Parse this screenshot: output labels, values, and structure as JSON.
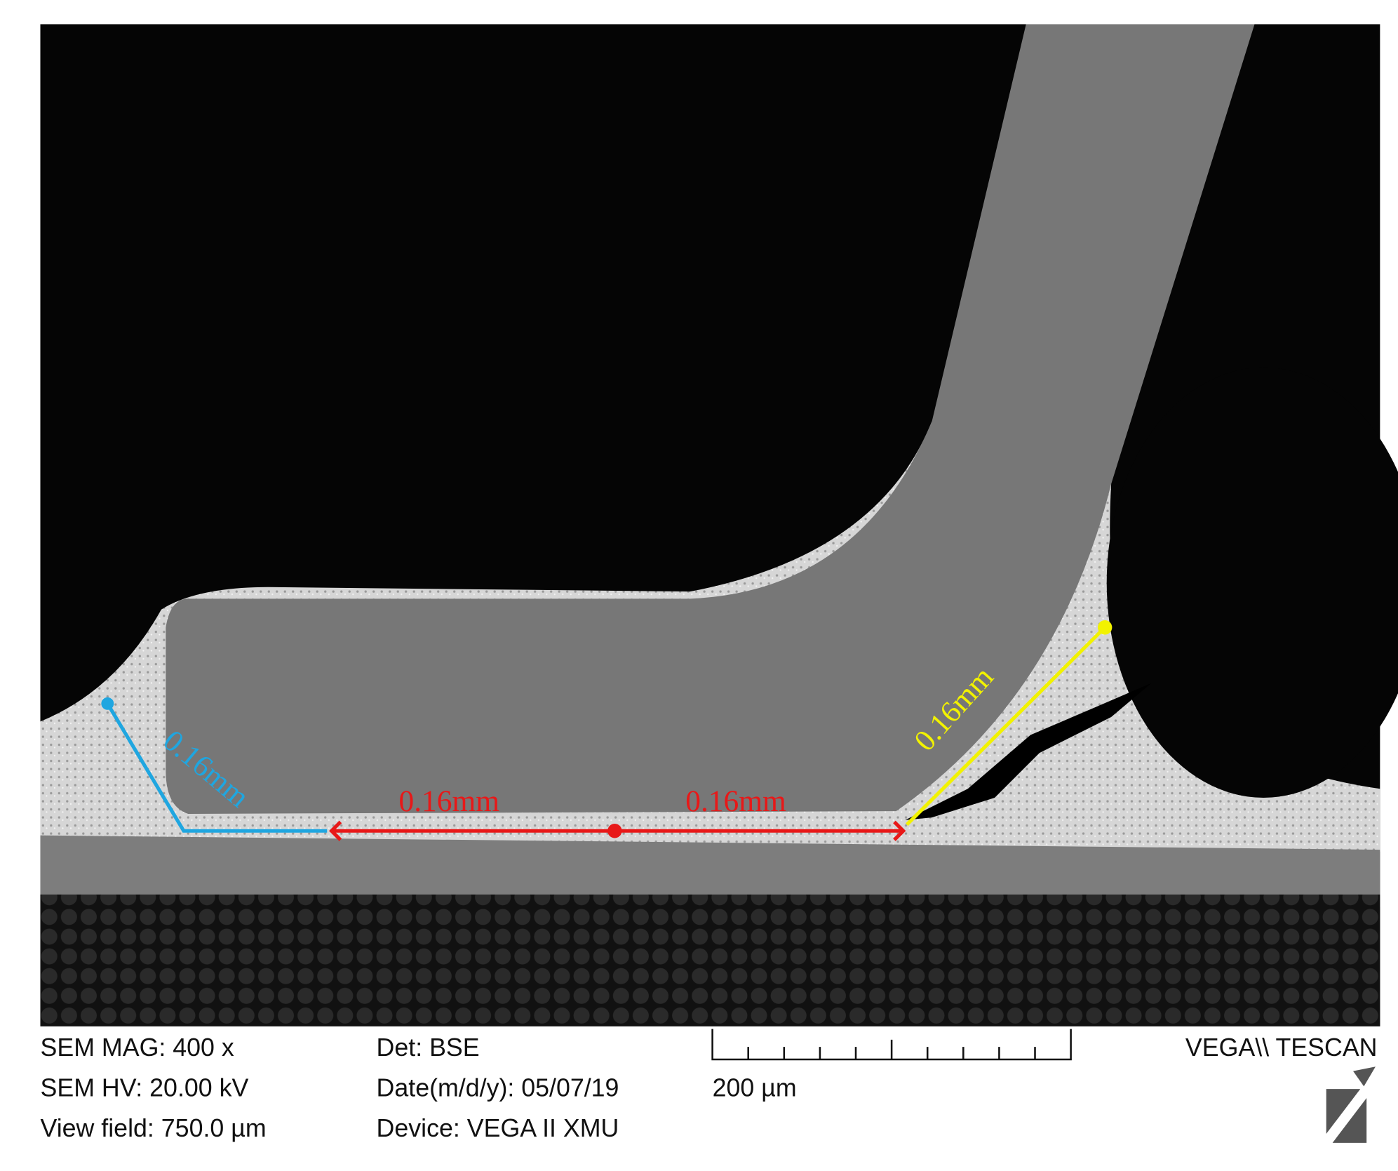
{
  "annotations": [
    "0.16mm",
    "0.16mm",
    "0.16mm",
    "0.16mm"
  ],
  "info": {
    "left": [
      "SEM MAG: 400 x",
      "SEM HV: 20.00 kV",
      "View field: 750.0 µm"
    ],
    "middle": [
      "Det: BSE",
      "Date(m/d/y): 05/07/19",
      "Device: VEGA II XMU"
    ],
    "scale_bar": "200 µm",
    "brand": "VEGA\\\\ TESCAN"
  }
}
